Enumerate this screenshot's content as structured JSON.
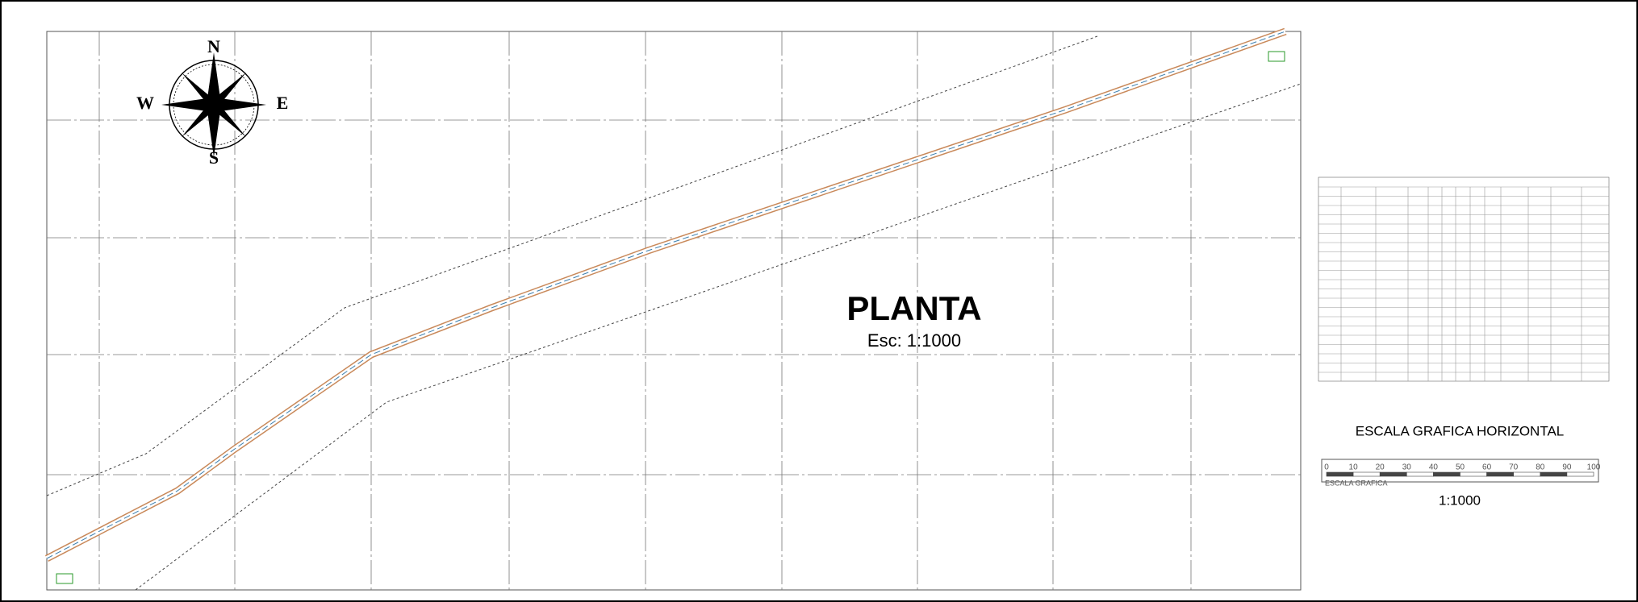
{
  "plan": {
    "title": "PLANTA",
    "scale": "Esc: 1:1000"
  },
  "compass": {
    "north": "N",
    "east": "E",
    "south": "S",
    "west": "W"
  },
  "scale_bar": {
    "title": "ESCALA GRAFICA HORIZONTAL",
    "labels": [
      0,
      10,
      20,
      30,
      40,
      50,
      60,
      70,
      80,
      90,
      100
    ],
    "caption": "ESCALA GRAFICA",
    "ratio": "1:1000"
  }
}
